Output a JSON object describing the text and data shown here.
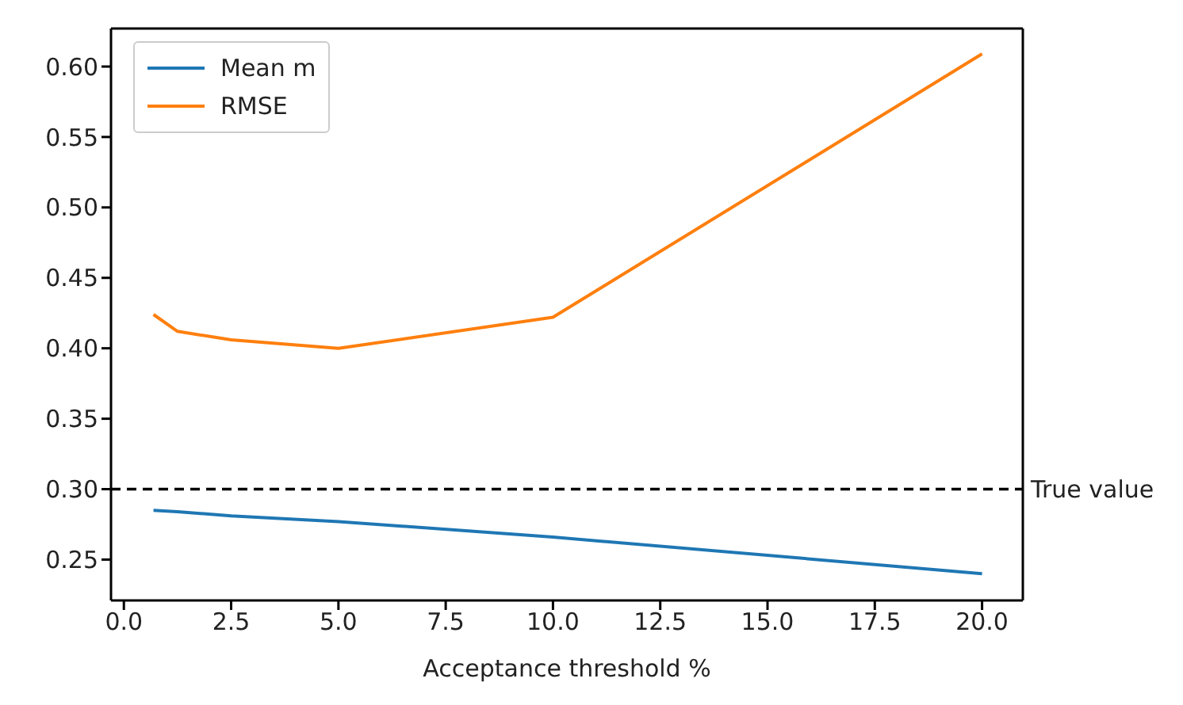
{
  "chart_data": {
    "type": "line",
    "xlabel": "Acceptance threshold %",
    "x": [
      0.69,
      1.25,
      2.5,
      5,
      10,
      20
    ],
    "series": [
      {
        "name": "Mean m",
        "color": "#1f77b4",
        "values": [
          0.285,
          0.284,
          0.281,
          0.277,
          0.266,
          0.24
        ]
      },
      {
        "name": "RMSE",
        "color": "#ff7f0e",
        "values": [
          0.424,
          0.412,
          0.406,
          0.4,
          0.422,
          0.609
        ]
      }
    ],
    "xlim": [
      -0.3,
      20.95
    ],
    "xticks": [
      {
        "value": 0,
        "label": "0.0"
      },
      {
        "value": 2.5,
        "label": "2.5"
      },
      {
        "value": 5,
        "label": "5.0"
      },
      {
        "value": 7.5,
        "label": "7.5"
      },
      {
        "value": 10,
        "label": "10.0"
      },
      {
        "value": 12.5,
        "label": "12.5"
      },
      {
        "value": 15,
        "label": "15.0"
      },
      {
        "value": 17.5,
        "label": "17.5"
      },
      {
        "value": 20,
        "label": "20.0"
      }
    ],
    "ylim": [
      0.221,
      0.627
    ],
    "yticks": [
      {
        "value": 0.25,
        "label": "0.25"
      },
      {
        "value": 0.3,
        "label": "0.30"
      },
      {
        "value": 0.35,
        "label": "0.35"
      },
      {
        "value": 0.4,
        "label": "0.40"
      },
      {
        "value": 0.45,
        "label": "0.45"
      },
      {
        "value": 0.5,
        "label": "0.50"
      },
      {
        "value": 0.55,
        "label": "0.55"
      },
      {
        "value": 0.6,
        "label": "0.60"
      }
    ],
    "ref_lines": [
      {
        "axis": "y",
        "value": 0.3,
        "label": "True value",
        "color": "#000000",
        "line_style": "dashed"
      }
    ],
    "grid": false,
    "legend": "top left",
    "marker": "none",
    "line_style": "solid"
  }
}
